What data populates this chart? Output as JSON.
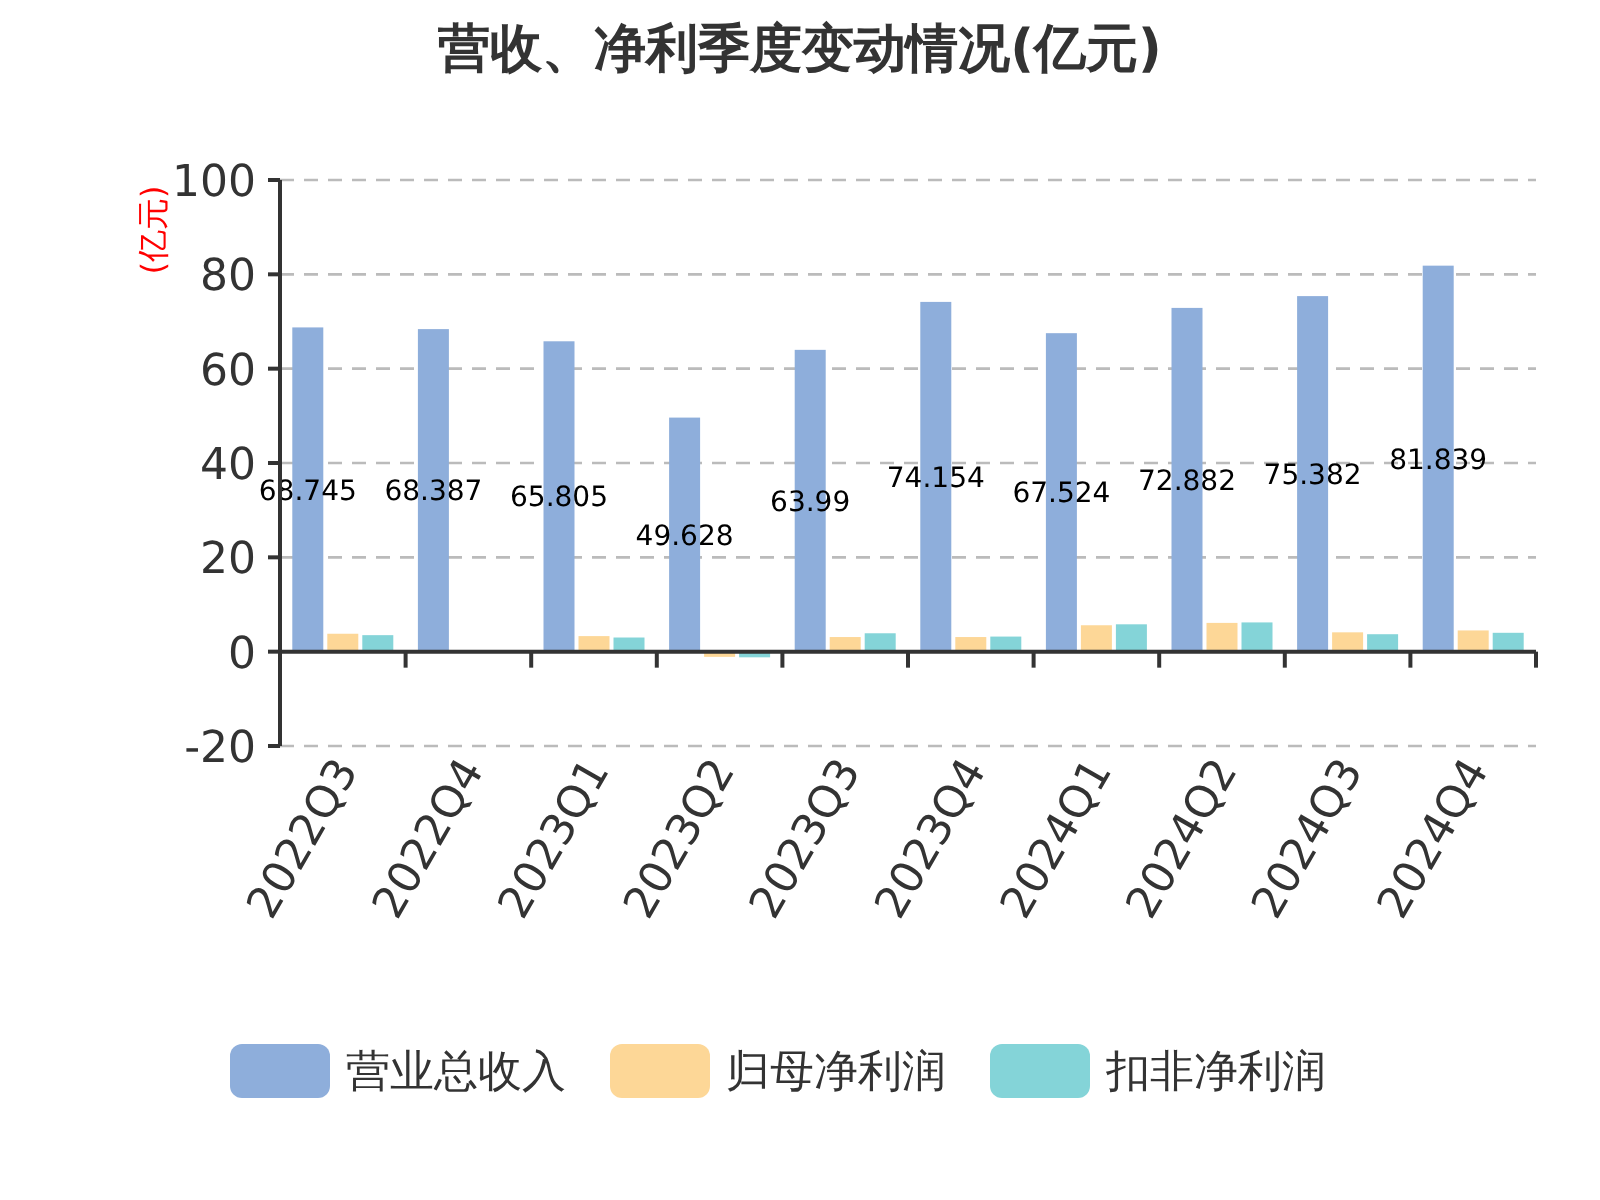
{
  "chart_data": {
    "type": "bar",
    "title": "营收、净利季度变动情况(亿元)",
    "ylabel": "(亿元)",
    "categories": [
      "2022Q3",
      "2022Q4",
      "2023Q1",
      "2023Q2",
      "2023Q3",
      "2023Q4",
      "2024Q1",
      "2024Q2",
      "2024Q3",
      "2024Q4"
    ],
    "series": [
      {
        "name": "营业总收入",
        "color": "#8eaedb",
        "values": [
          68.745,
          68.387,
          65.805,
          49.628,
          63.99,
          74.154,
          67.524,
          72.882,
          75.382,
          81.839
        ],
        "value_labels": [
          "68.745",
          "68.387",
          "65.805",
          "49.628",
          "63.99",
          "74.154",
          "67.524",
          "72.882",
          "75.382",
          "81.839"
        ]
      },
      {
        "name": "归母净利润",
        "color": "#fdd797",
        "values": [
          3.8,
          0.3,
          3.3,
          -1.1,
          3.1,
          3.1,
          5.6,
          6.1,
          4.1,
          4.5
        ]
      },
      {
        "name": "扣非净利润",
        "color": "#84d4d8",
        "values": [
          3.5,
          null,
          3.0,
          -1.2,
          3.9,
          3.2,
          5.8,
          6.2,
          3.7,
          4.0
        ]
      }
    ],
    "ylim": [
      -20,
      100
    ],
    "yticks": [
      -20,
      0,
      20,
      40,
      60,
      80,
      100
    ],
    "grid": "y",
    "legend": "bottom"
  }
}
